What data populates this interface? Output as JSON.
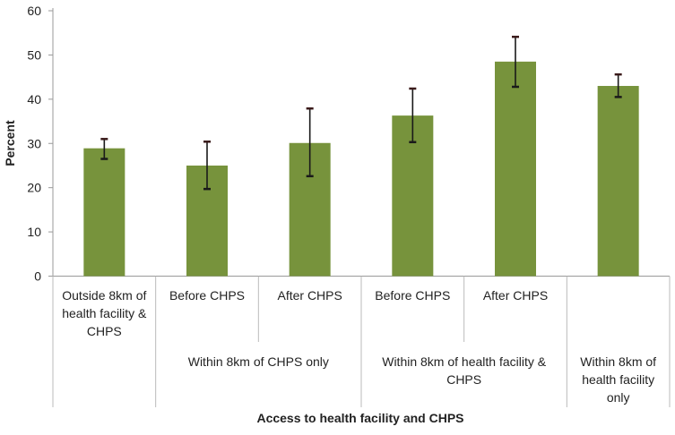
{
  "chart_data": {
    "type": "bar",
    "title": "",
    "ylabel": "Percent",
    "xlabel": "Access to health facility and CHPS",
    "ylim": [
      0,
      60
    ],
    "yticks": [
      0,
      10,
      20,
      30,
      40,
      50,
      60
    ],
    "grid": false,
    "bar_color": "#77933C",
    "error_bar_color": "#1a1a1a",
    "categories": [
      {
        "label": [
          "Outside 8km of",
          "health facility &",
          "CHPS"
        ],
        "group": ""
      },
      {
        "label": [
          "Before CHPS"
        ],
        "group": "Within 8km of CHPS only"
      },
      {
        "label": [
          "After CHPS"
        ],
        "group": "Within 8km of CHPS only"
      },
      {
        "label": [
          "Before CHPS"
        ],
        "group": "Within 8km of health facility & CHPS"
      },
      {
        "label": [
          "After CHPS"
        ],
        "group": "Within 8km of health facility & CHPS"
      },
      {
        "label": [],
        "group": "Within 8km of health facility only"
      }
    ],
    "groups": [
      {
        "label": [
          "Within 8km of CHPS only"
        ],
        "span": [
          1,
          2
        ]
      },
      {
        "label": [
          "Within 8km of health facility &",
          "CHPS"
        ],
        "span": [
          3,
          4
        ]
      },
      {
        "label": [
          "Within 8km of",
          "health facility",
          "only"
        ],
        "span": [
          5,
          5
        ]
      }
    ],
    "values": [
      28.9,
      25.0,
      30.1,
      36.3,
      48.5,
      43.0
    ],
    "error_low": [
      26.5,
      19.7,
      22.6,
      30.3,
      42.8,
      40.5
    ],
    "error_high": [
      31.0,
      30.4,
      37.9,
      42.4,
      54.1,
      45.6
    ]
  }
}
